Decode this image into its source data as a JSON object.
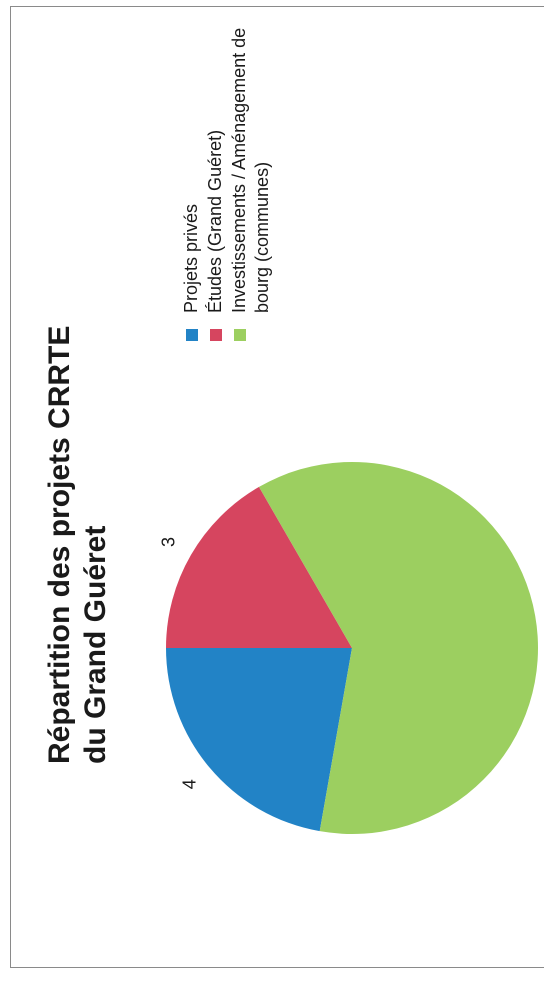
{
  "chart_data": {
    "type": "pie",
    "title_lines": [
      "Répartition des projets CRRTE",
      "du Grand Guéret"
    ],
    "slices": [
      {
        "label": "Projets privés",
        "value": 4,
        "color": "#2283c6"
      },
      {
        "label": "Études (Grand Guéret)",
        "value": 3,
        "color": "#d6455f"
      },
      {
        "label": "Investissements / Aménagement de bourg (communes)",
        "value": 11,
        "color": "#9ccf60"
      }
    ],
    "legend_placement": "right"
  }
}
